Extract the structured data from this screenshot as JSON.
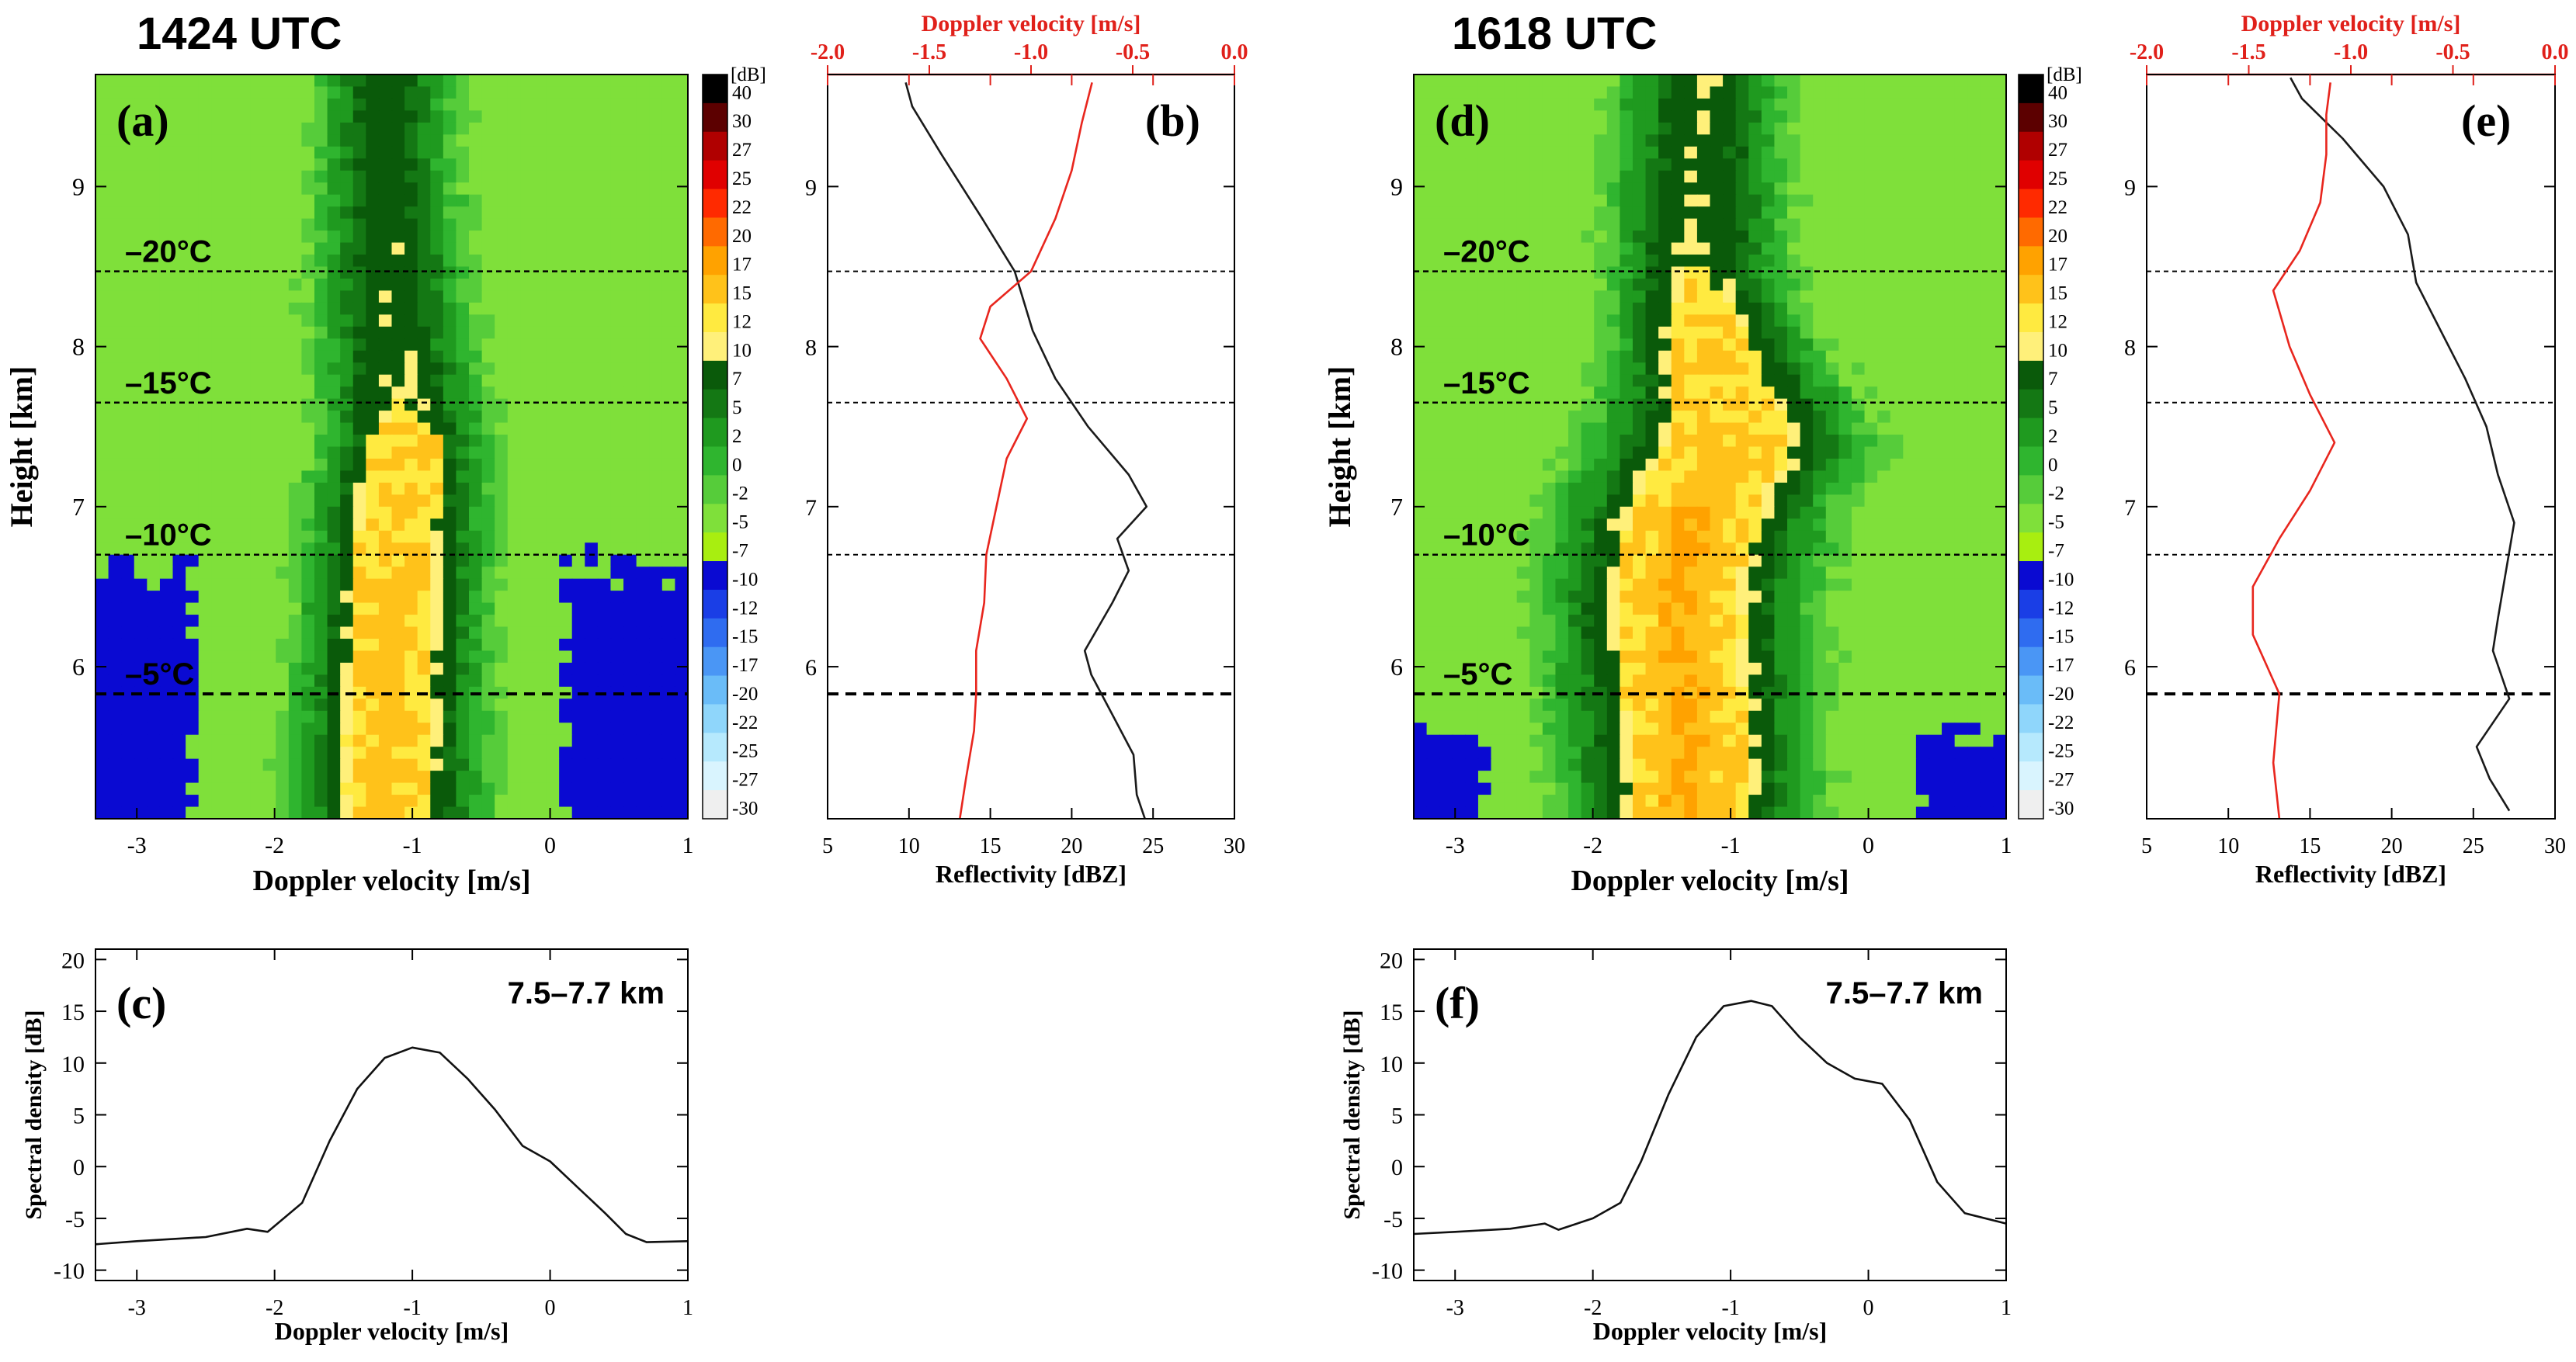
{
  "figure": {
    "colors": {
      "axis": "#000000",
      "red_axis": "#e0201a",
      "reflectivity_line": "#1a1a1a",
      "velocity_line": "#e8261e",
      "spectrum_line": "#111111",
      "dashed_lines": "#000000"
    }
  },
  "colorbar": {
    "unit": "[dB]",
    "labels": [
      "40",
      "30",
      "27",
      "25",
      "22",
      "20",
      "17",
      "15",
      "12",
      "10",
      "7",
      "5",
      "2",
      "0",
      "-2",
      "-5",
      "-7",
      "-10",
      "-12",
      "-15",
      "-17",
      "-20",
      "-22",
      "-25",
      "-27",
      "-30"
    ],
    "colors": [
      "#000000",
      "#5c0000",
      "#b00000",
      "#e00000",
      "#ff2a00",
      "#ff6a00",
      "#ffa200",
      "#ffc21a",
      "#ffea40",
      "#fff07a",
      "#0a5a0a",
      "#147814",
      "#1f9a1f",
      "#2fb52f",
      "#56cc3a",
      "#7fe03a",
      "#a8ee10",
      "#0a0ad2",
      "#1a3ee6",
      "#2f6cf0",
      "#4a96f5",
      "#6abcf8",
      "#8fd6fb",
      "#b6e9fd",
      "#d9f4fe",
      "#efefef"
    ]
  },
  "chart_data": [
    {
      "id": "a",
      "type": "heatmap",
      "panel_label": "(a)",
      "header": "1424 UTC",
      "xlabel": "Doppler velocity [m/s]",
      "ylabel": "Height [km]",
      "xlim": [
        -3.3,
        1.0
      ],
      "ylim": [
        5.05,
        9.7
      ],
      "xticks": [
        -3,
        -2,
        -1,
        0,
        1
      ],
      "xtick_labels": [
        "-3",
        "-2",
        "-1",
        "0",
        "1"
      ],
      "yticks": [
        6,
        7,
        8,
        9
      ],
      "ytick_labels": [
        "6",
        "7",
        "8",
        "9"
      ],
      "isotherms": [
        {
          "label": "–20°C",
          "height": 8.47,
          "style": "fine"
        },
        {
          "label": "–15°C",
          "height": 7.65,
          "style": "fine"
        },
        {
          "label": "–10°C",
          "height": 6.7,
          "style": "fine"
        },
        {
          "label": "–5°C",
          "height": 5.83,
          "style": "bold"
        }
      ],
      "profile": [
        [
          5.1,
          -1.18,
          0.44,
          16,
          0.29
        ],
        [
          5.5,
          -1.18,
          0.44,
          16,
          0.29
        ],
        [
          6.0,
          -1.15,
          0.43,
          16,
          0.28
        ],
        [
          6.5,
          -1.12,
          0.42,
          16,
          0.27
        ],
        [
          7.0,
          -1.1,
          0.42,
          15,
          0.28
        ],
        [
          7.4,
          -1.05,
          0.4,
          13,
          0.25
        ],
        [
          7.7,
          -1.08,
          0.42,
          10,
          0.0
        ],
        [
          8.2,
          -1.15,
          0.4,
          9.5,
          0.0
        ],
        [
          8.8,
          -1.18,
          0.37,
          9,
          0.0
        ],
        [
          9.6,
          -1.18,
          0.35,
          8.5,
          0.0
        ]
      ],
      "noise_blue_top": [
        6.45,
        6.8
      ],
      "noise_edges": [
        -2.55,
        0.05
      ]
    },
    {
      "id": "b",
      "type": "line",
      "panel_label": "(b)",
      "xlabel": "Reflectivity [dBZ]",
      "x2label": "Doppler velocity [m/s]",
      "xlim": [
        5,
        30
      ],
      "x2lim": [
        -2.0,
        0.0
      ],
      "ylim": [
        5.05,
        9.7
      ],
      "xticks": [
        5,
        10,
        15,
        20,
        25,
        30
      ],
      "xtick_labels": [
        "5",
        "10",
        "15",
        "20",
        "25",
        "30"
      ],
      "x2ticks": [
        -2.0,
        -1.5,
        -1.0,
        -0.5,
        0.0
      ],
      "x2tick_labels": [
        "-2.0",
        "-1.5",
        "-1.0",
        "-0.5",
        "0.0"
      ],
      "yticks": [
        6,
        7,
        8,
        9
      ],
      "ytick_labels": [
        "6",
        "7",
        "8",
        "9"
      ],
      "hlines": [
        8.47,
        7.65,
        6.7,
        5.83
      ],
      "hline_bold": [
        5.83
      ],
      "series": [
        {
          "name": "Reflectivity",
          "axis": "bottom",
          "color": "#1a1a1a",
          "points": [
            [
              5.05,
              24.5
            ],
            [
              5.2,
              24.0
            ],
            [
              5.45,
              23.8
            ],
            [
              5.7,
              22.5
            ],
            [
              5.95,
              21.2
            ],
            [
              6.1,
              20.8
            ],
            [
              6.4,
              22.5
            ],
            [
              6.6,
              23.5
            ],
            [
              6.8,
              22.8
            ],
            [
              7.0,
              24.6
            ],
            [
              7.2,
              23.5
            ],
            [
              7.5,
              21.0
            ],
            [
              7.8,
              19.0
            ],
            [
              8.1,
              17.6
            ],
            [
              8.47,
              16.5
            ],
            [
              8.8,
              14.5
            ],
            [
              9.2,
              12.0
            ],
            [
              9.5,
              10.2
            ],
            [
              9.65,
              9.8
            ]
          ]
        },
        {
          "name": "Doppler velocity",
          "axis": "top",
          "color": "#e8261e",
          "points": [
            [
              5.05,
              -1.35
            ],
            [
              5.3,
              -1.32
            ],
            [
              5.6,
              -1.28
            ],
            [
              5.83,
              -1.27
            ],
            [
              6.1,
              -1.27
            ],
            [
              6.4,
              -1.23
            ],
            [
              6.7,
              -1.22
            ],
            [
              7.0,
              -1.17
            ],
            [
              7.3,
              -1.12
            ],
            [
              7.55,
              -1.02
            ],
            [
              7.8,
              -1.12
            ],
            [
              8.05,
              -1.25
            ],
            [
              8.25,
              -1.2
            ],
            [
              8.47,
              -1.0
            ],
            [
              8.8,
              -0.88
            ],
            [
              9.1,
              -0.8
            ],
            [
              9.4,
              -0.75
            ],
            [
              9.65,
              -0.7
            ]
          ]
        }
      ]
    },
    {
      "id": "c",
      "type": "line",
      "panel_label": "(c)",
      "annotation": "7.5–7.7 km",
      "xlabel": "Doppler velocity [m/s]",
      "ylabel": "Spectral density [dB]",
      "xlim": [
        -3.3,
        1.0
      ],
      "ylim": [
        -11,
        21
      ],
      "xticks": [
        -3,
        -2,
        -1,
        0,
        1
      ],
      "xtick_labels": [
        "-3",
        "-2",
        "-1",
        "0",
        "1"
      ],
      "yticks": [
        -10,
        -5,
        0,
        5,
        10,
        15,
        20
      ],
      "ytick_labels": [
        "-10",
        "-5",
        "0",
        "5",
        "10",
        "15",
        "20"
      ],
      "series": [
        {
          "name": "Spectrum",
          "color": "#111111",
          "points": [
            [
              -3.3,
              -7.5
            ],
            [
              -3.0,
              -7.2
            ],
            [
              -2.5,
              -6.8
            ],
            [
              -2.2,
              -6.0
            ],
            [
              -2.05,
              -6.3
            ],
            [
              -1.8,
              -3.5
            ],
            [
              -1.6,
              2.5
            ],
            [
              -1.4,
              7.5
            ],
            [
              -1.2,
              10.5
            ],
            [
              -1.0,
              11.5
            ],
            [
              -0.8,
              11.0
            ],
            [
              -0.6,
              8.5
            ],
            [
              -0.4,
              5.5
            ],
            [
              -0.2,
              2.0
            ],
            [
              0.0,
              0.5
            ],
            [
              0.2,
              -2.0
            ],
            [
              0.4,
              -4.5
            ],
            [
              0.55,
              -6.5
            ],
            [
              0.7,
              -7.3
            ],
            [
              1.0,
              -7.2
            ]
          ]
        }
      ]
    },
    {
      "id": "d",
      "type": "heatmap",
      "panel_label": "(d)",
      "header": "1618 UTC",
      "xlabel": "Doppler velocity [m/s]",
      "ylabel": "Height [km]",
      "xlim": [
        -3.3,
        1.0
      ],
      "ylim": [
        5.05,
        9.7
      ],
      "xticks": [
        -3,
        -2,
        -1,
        0,
        1
      ],
      "xtick_labels": [
        "-3",
        "-2",
        "-1",
        "0",
        "1"
      ],
      "yticks": [
        6,
        7,
        8,
        9
      ],
      "ytick_labels": [
        "6",
        "7",
        "8",
        "9"
      ],
      "isotherms": [
        {
          "label": "–20°C",
          "height": 8.47,
          "style": "fine"
        },
        {
          "label": "–15°C",
          "height": 7.65,
          "style": "fine"
        },
        {
          "label": "–10°C",
          "height": 6.7,
          "style": "fine"
        },
        {
          "label": "–5°C",
          "height": 5.83,
          "style": "bold"
        }
      ],
      "profile": [
        [
          5.1,
          -1.3,
          0.55,
          17,
          0.4
        ],
        [
          5.5,
          -1.32,
          0.58,
          17,
          0.42
        ],
        [
          6.0,
          -1.35,
          0.58,
          17,
          0.42
        ],
        [
          6.5,
          -1.38,
          0.6,
          17,
          0.43
        ],
        [
          7.0,
          -1.25,
          0.62,
          17,
          0.45
        ],
        [
          7.4,
          -1.0,
          0.65,
          16,
          0.45
        ],
        [
          7.7,
          -1.05,
          0.55,
          15,
          0.37
        ],
        [
          8.2,
          -1.2,
          0.45,
          13,
          0.22
        ],
        [
          8.6,
          -1.25,
          0.45,
          10,
          0.0
        ],
        [
          9.6,
          -1.22,
          0.42,
          9.5,
          0.0
        ]
      ],
      "noise_blue_top": [
        5.5,
        5.65
      ],
      "noise_edges": [
        -2.75,
        0.3
      ]
    },
    {
      "id": "e",
      "type": "line",
      "panel_label": "(e)",
      "xlabel": "Reflectivity [dBZ]",
      "x2label": "Doppler velocity [m/s]",
      "xlim": [
        5,
        30
      ],
      "x2lim": [
        -2.0,
        0.0
      ],
      "ylim": [
        5.05,
        9.7
      ],
      "xticks": [
        5,
        10,
        15,
        20,
        25,
        30
      ],
      "xtick_labels": [
        "5",
        "10",
        "15",
        "20",
        "25",
        "30"
      ],
      "x2ticks": [
        -2.0,
        -1.5,
        -1.0,
        -0.5,
        0.0
      ],
      "x2tick_labels": [
        "-2.0",
        "-1.5",
        "-1.0",
        "-0.5",
        "0.0"
      ],
      "yticks": [
        6,
        7,
        8,
        9
      ],
      "ytick_labels": [
        "6",
        "7",
        "8",
        "9"
      ],
      "hlines": [
        8.47,
        7.65,
        6.7,
        5.83
      ],
      "hline_bold": [
        5.83
      ],
      "series": [
        {
          "name": "Reflectivity",
          "axis": "bottom",
          "color": "#1a1a1a",
          "points": [
            [
              5.1,
              27.2
            ],
            [
              5.3,
              26.0
            ],
            [
              5.5,
              25.2
            ],
            [
              5.8,
              27.2
            ],
            [
              6.1,
              26.2
            ],
            [
              6.3,
              26.5
            ],
            [
              6.6,
              27.0
            ],
            [
              6.9,
              27.5
            ],
            [
              7.2,
              26.5
            ],
            [
              7.5,
              25.8
            ],
            [
              7.8,
              24.5
            ],
            [
              8.1,
              23.0
            ],
            [
              8.4,
              21.5
            ],
            [
              8.7,
              21.0
            ],
            [
              9.0,
              19.5
            ],
            [
              9.3,
              17.0
            ],
            [
              9.55,
              14.5
            ],
            [
              9.68,
              13.8
            ]
          ]
        },
        {
          "name": "Doppler velocity",
          "axis": "top",
          "color": "#e8261e",
          "points": [
            [
              5.05,
              -1.35
            ],
            [
              5.4,
              -1.38
            ],
            [
              5.83,
              -1.35
            ],
            [
              6.2,
              -1.48
            ],
            [
              6.5,
              -1.48
            ],
            [
              6.8,
              -1.35
            ],
            [
              7.1,
              -1.2
            ],
            [
              7.4,
              -1.08
            ],
            [
              7.7,
              -1.2
            ],
            [
              8.0,
              -1.3
            ],
            [
              8.35,
              -1.38
            ],
            [
              8.6,
              -1.25
            ],
            [
              8.9,
              -1.15
            ],
            [
              9.2,
              -1.12
            ],
            [
              9.45,
              -1.12
            ],
            [
              9.65,
              -1.1
            ]
          ]
        }
      ]
    },
    {
      "id": "f",
      "type": "line",
      "panel_label": "(f)",
      "annotation": "7.5–7.7 km",
      "xlabel": "Doppler velocity [m/s]",
      "ylabel": "Spectral density [dB]",
      "xlim": [
        -3.3,
        1.0
      ],
      "ylim": [
        -11,
        21
      ],
      "xticks": [
        -3,
        -2,
        -1,
        0,
        1
      ],
      "xtick_labels": [
        "-3",
        "-2",
        "-1",
        "0",
        "1"
      ],
      "yticks": [
        -10,
        -5,
        0,
        5,
        10,
        15,
        20
      ],
      "ytick_labels": [
        "-10",
        "-5",
        "0",
        "5",
        "10",
        "15",
        "20"
      ],
      "series": [
        {
          "name": "Spectrum",
          "color": "#111111",
          "points": [
            [
              -3.3,
              -6.5
            ],
            [
              -3.0,
              -6.3
            ],
            [
              -2.6,
              -6.0
            ],
            [
              -2.35,
              -5.5
            ],
            [
              -2.25,
              -6.1
            ],
            [
              -2.0,
              -5.0
            ],
            [
              -1.8,
              -3.5
            ],
            [
              -1.65,
              0.5
            ],
            [
              -1.45,
              7.0
            ],
            [
              -1.25,
              12.5
            ],
            [
              -1.05,
              15.5
            ],
            [
              -0.85,
              16.0
            ],
            [
              -0.7,
              15.5
            ],
            [
              -0.5,
              12.5
            ],
            [
              -0.3,
              10.0
            ],
            [
              -0.1,
              8.5
            ],
            [
              0.1,
              8.0
            ],
            [
              0.3,
              4.5
            ],
            [
              0.5,
              -1.5
            ],
            [
              0.7,
              -4.5
            ],
            [
              1.0,
              -5.5
            ]
          ]
        }
      ]
    }
  ]
}
